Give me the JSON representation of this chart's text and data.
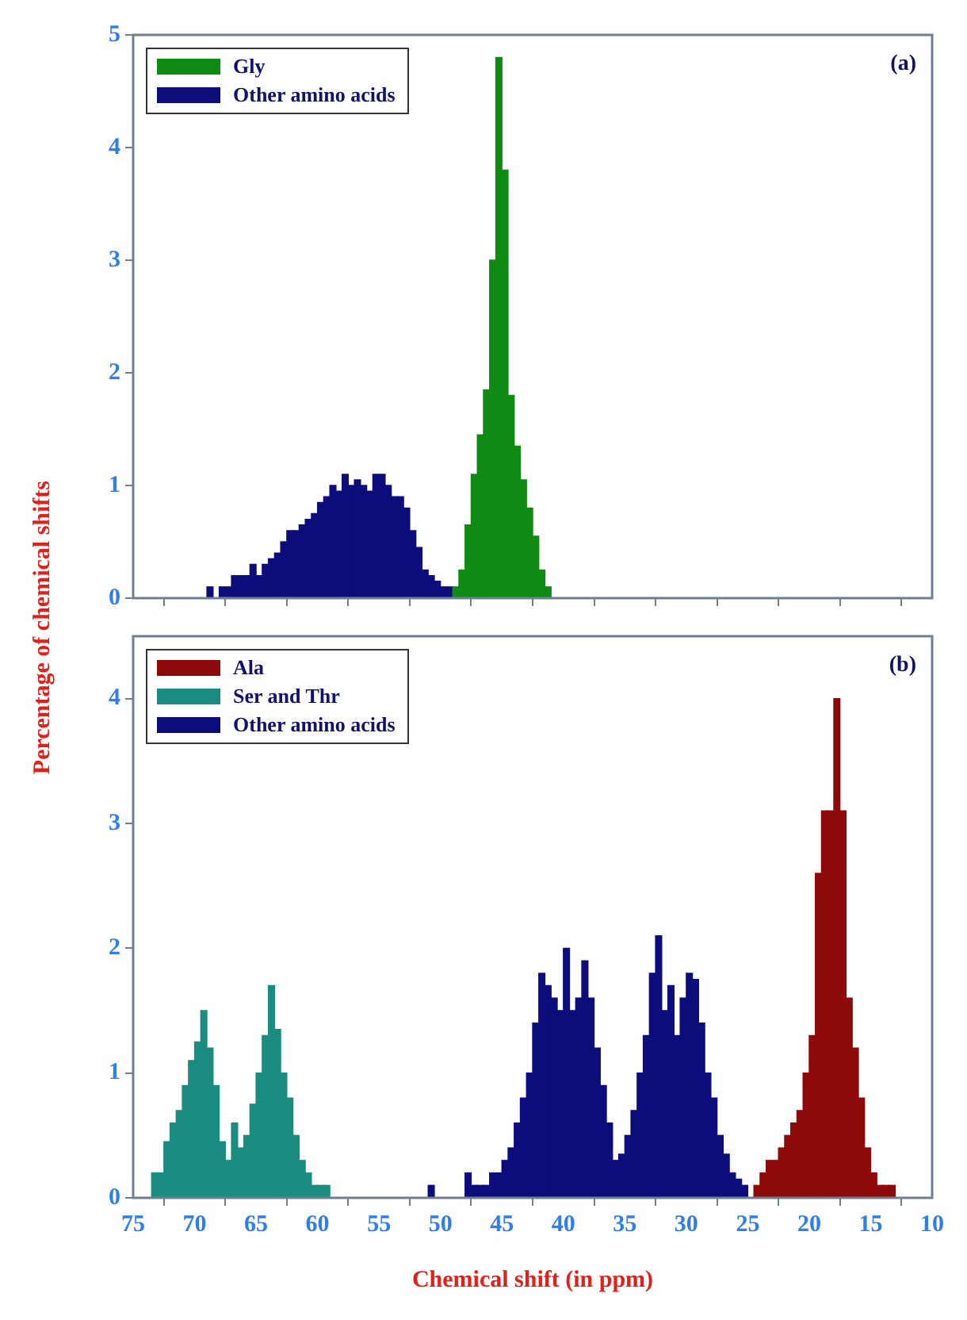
{
  "chart_data": [
    {
      "type": "histogram",
      "xlim": [
        75,
        10
      ],
      "xticks": [
        75,
        70,
        65,
        60,
        55,
        50,
        45,
        40,
        35,
        30,
        25,
        20,
        15,
        10
      ],
      "ylim": [
        0,
        5
      ],
      "yticks": [
        0,
        1,
        2,
        3,
        4,
        5
      ],
      "tick_labels": "y",
      "legend": "top left",
      "annotations": [
        "(a)"
      ],
      "bins": [
        41,
        41.5,
        42,
        42.5,
        43,
        43.5,
        44,
        44.5,
        45,
        45.5,
        46,
        46.5,
        47,
        47.5,
        48,
        48.5,
        49,
        49.5,
        50,
        50.5,
        51,
        51.5,
        52,
        52.5,
        53,
        53.5,
        54,
        54.5,
        55,
        55.5,
        56,
        56.5,
        57,
        57.5,
        58,
        58.5,
        59,
        59.5,
        60,
        60.5,
        61,
        61.5,
        62,
        62.5,
        63,
        63.5,
        64,
        64.5,
        65,
        65.5,
        66,
        66.5,
        67,
        67.5,
        68,
        68.5,
        69
      ],
      "series": [
        {
          "name": "Gly",
          "color": "#0f8a12",
          "values": [
            0.1,
            0.25,
            0.55,
            0.8,
            1.05,
            1.35,
            1.8,
            3.8,
            4.8,
            3.0,
            1.85,
            1.45,
            1.1,
            0.65,
            0.25,
            0.1,
            null,
            null,
            null,
            null,
            null,
            null,
            null,
            null,
            null,
            null,
            null,
            null,
            null,
            null,
            null,
            null,
            null,
            null,
            null,
            null,
            null,
            null,
            null,
            null,
            null,
            null,
            null,
            null,
            null,
            null,
            null,
            null,
            null,
            null,
            null,
            null,
            null,
            null,
            null,
            null
          ]
        },
        {
          "name": "Other amino acids",
          "color": "#0c0c7a",
          "values": [
            null,
            null,
            null,
            null,
            null,
            null,
            null,
            null,
            null,
            null,
            null,
            null,
            null,
            null,
            null,
            null,
            0.1,
            0.1,
            0.15,
            0.2,
            0.25,
            0.45,
            0.6,
            0.8,
            0.9,
            0.9,
            1.0,
            1.1,
            1.1,
            0.95,
            1.0,
            1.05,
            1.0,
            1.1,
            0.95,
            1.0,
            0.9,
            0.85,
            0.75,
            0.7,
            0.65,
            0.6,
            0.6,
            0.5,
            0.4,
            0.35,
            0.3,
            0.2,
            0.3,
            0.2,
            0.2,
            0.2,
            0.1,
            0.1,
            0,
            0.1
          ]
        }
      ]
    },
    {
      "type": "histogram",
      "xlim": [
        75,
        10
      ],
      "xticks": [
        75,
        70,
        65,
        60,
        55,
        50,
        45,
        40,
        35,
        30,
        25,
        20,
        15,
        10
      ],
      "ylim": [
        0,
        4.5
      ],
      "yticks": [
        0,
        1,
        2,
        3,
        4
      ],
      "xlabel": "Chemical shift (in ppm)",
      "ylabel": "Percentage of chemical shifts",
      "legend": "top left",
      "annotations": [
        "(b)"
      ],
      "bins": [
        13,
        13.5,
        14,
        14.5,
        15,
        15.5,
        16,
        16.5,
        17,
        17.5,
        18,
        18.5,
        19,
        19.5,
        20,
        20.5,
        21,
        21.5,
        22,
        22.5,
        23,
        23.5,
        24,
        24.5,
        25,
        25.5,
        26,
        26.5,
        27,
        27.5,
        28,
        28.5,
        29,
        29.5,
        30,
        30.5,
        31,
        31.5,
        32,
        32.5,
        33,
        33.5,
        34,
        34.5,
        35,
        35.5,
        36,
        36.5,
        37,
        37.5,
        38,
        38.5,
        39,
        39.5,
        40,
        40.5,
        41,
        41.5,
        42,
        42.5,
        43,
        43.5,
        44,
        44.5,
        45,
        45.5,
        46,
        46.5,
        47,
        47.5,
        48,
        48.5,
        49,
        49.5,
        50,
        50.5,
        51,
        51.5,
        52,
        52.5,
        53,
        53.5,
        54,
        54.5,
        55,
        55.5,
        56,
        56.5,
        57,
        57.5,
        58,
        58.5,
        59,
        59.5,
        60,
        60.5,
        61,
        61.5,
        62,
        62.5,
        63,
        63.5,
        64,
        64.5,
        65,
        65.5,
        66,
        66.5,
        67,
        67.5,
        68,
        68.5,
        69,
        69.5,
        70,
        70.5,
        71,
        71.5,
        72,
        72.5,
        73,
        73.5
      ],
      "series": [
        {
          "name": "Ala",
          "color": "#8e0a0a",
          "values": [
            0.1,
            0.1,
            0.1,
            0.2,
            0.4,
            0.8,
            1.2,
            1.6,
            3.1,
            4.0,
            3.1,
            3.1,
            2.6,
            1.3,
            1.0,
            0.7,
            0.6,
            0.5,
            0.4,
            0.3,
            0.3,
            0.2,
            0.1,
            null,
            null,
            null,
            null,
            null,
            null,
            null,
            null,
            null,
            null,
            null,
            null,
            null,
            null,
            null,
            null,
            null,
            null,
            null,
            null,
            null,
            null,
            null,
            null,
            null,
            null,
            null,
            null,
            null,
            null,
            null,
            null,
            null,
            null,
            null,
            null,
            null,
            null,
            null,
            null,
            null,
            null,
            null,
            null,
            null,
            null,
            null,
            null,
            null,
            null,
            null,
            null,
            null,
            null,
            null,
            null,
            null,
            null,
            null,
            null,
            null,
            null,
            null,
            null,
            null,
            null,
            null,
            null,
            null,
            null,
            null,
            null,
            null,
            null,
            null,
            null,
            null,
            null,
            null,
            null,
            null,
            null,
            null,
            null,
            null,
            null,
            null,
            null,
            null,
            null,
            null,
            null,
            null,
            null,
            null,
            null,
            null,
            null
          ]
        },
        {
          "name": "Ser and Thr",
          "color": "#1a8c80",
          "values": [
            null,
            null,
            null,
            null,
            null,
            null,
            null,
            null,
            null,
            null,
            null,
            null,
            null,
            null,
            null,
            null,
            null,
            null,
            null,
            null,
            null,
            null,
            null,
            null,
            null,
            null,
            null,
            null,
            null,
            null,
            null,
            null,
            null,
            null,
            null,
            null,
            null,
            null,
            null,
            null,
            null,
            null,
            null,
            null,
            null,
            null,
            null,
            null,
            null,
            null,
            null,
            null,
            null,
            null,
            null,
            null,
            null,
            null,
            null,
            null,
            null,
            null,
            null,
            null,
            null,
            null,
            null,
            null,
            null,
            null,
            null,
            null,
            null,
            null,
            null,
            null,
            null,
            null,
            null,
            null,
            null,
            null,
            null,
            null,
            null,
            null,
            null,
            null,
            null,
            null,
            null,
            null,
            0.1,
            0.1,
            0.1,
            0.2,
            0.3,
            0.5,
            0.8,
            1.0,
            1.35,
            1.7,
            1.3,
            1.0,
            0.75,
            0.5,
            0.4,
            0.6,
            0.3,
            0.45,
            0.9,
            1.2,
            1.5,
            1.25,
            1.1,
            0.9,
            0.7,
            0.6,
            0.45,
            0.2,
            0.2
          ]
        },
        {
          "name": "Other amino acids",
          "color": "#0c0c7a",
          "values": [
            null,
            null,
            null,
            null,
            null,
            null,
            null,
            null,
            null,
            null,
            null,
            null,
            null,
            null,
            null,
            null,
            null,
            null,
            null,
            null,
            null,
            null,
            null,
            null,
            0.1,
            0.15,
            0.2,
            0.35,
            0.5,
            0.8,
            1.0,
            1.4,
            1.75,
            1.8,
            1.6,
            1.3,
            1.7,
            1.5,
            2.1,
            1.8,
            1.3,
            1.0,
            0.7,
            0.5,
            0.35,
            0.3,
            0.6,
            0.9,
            1.2,
            1.6,
            1.9,
            1.6,
            1.5,
            2.0,
            1.5,
            1.6,
            1.7,
            1.8,
            1.4,
            1.0,
            0.8,
            0.6,
            0.4,
            0.3,
            0.2,
            0.2,
            0.1,
            0.1,
            0.1,
            0.2,
            0,
            0,
            0,
            0,
            0,
            0.1,
            0,
            0,
            0,
            0,
            0,
            0,
            0,
            0,
            0,
            0,
            0,
            0,
            0,
            0,
            0,
            0,
            null,
            null,
            null,
            null,
            null,
            null,
            null,
            null,
            null,
            null,
            null,
            null,
            null,
            null,
            null,
            null,
            null,
            null,
            null,
            null,
            null,
            null,
            null,
            null,
            null,
            null,
            null,
            null,
            null
          ]
        }
      ]
    }
  ]
}
